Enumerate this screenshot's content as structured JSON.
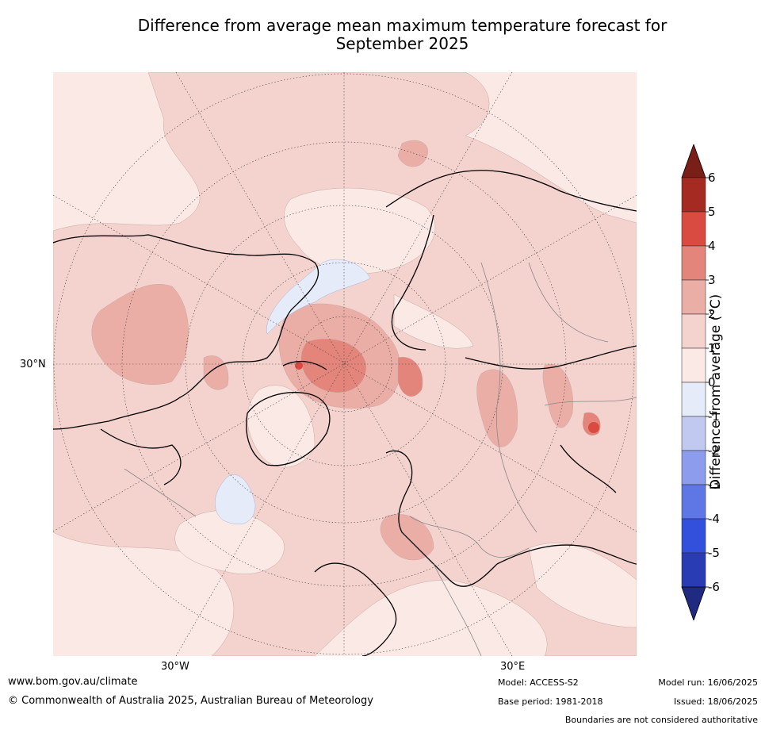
{
  "title_line1": "Difference from average mean maximum temperature forecast for",
  "title_line2": "September 2025",
  "map": {
    "projection": "north-polar-stereographic",
    "lat_label": "30°N",
    "lon_labels": [
      "30°W",
      "30°E"
    ],
    "region_fill_colors": {
      "near_average": "#fbe9e6",
      "plus_1_2": "#f4d2cd",
      "plus_2_3": "#ebaea7",
      "plus_3_4": "#e4857c",
      "plus_4_5": "#d94b41",
      "minus_0_1": "#e6ebfa"
    }
  },
  "colorbar": {
    "label": "Difference from average (°C)",
    "tick_labels": [
      "6",
      "5",
      "4",
      "3",
      "2",
      "1",
      "0",
      "-1",
      "-2",
      "-3",
      "-4",
      "-5",
      "-6"
    ],
    "colors": [
      "#a52a22",
      "#d94b41",
      "#e4857c",
      "#ebaea7",
      "#f4d2cd",
      "#fbe9e6",
      "#e6ebfa",
      "#c1c9f0",
      "#8d9cec",
      "#5f77e4",
      "#3350dc",
      "#2a3cb4"
    ],
    "extend_top_color": "#7a1f18",
    "extend_bottom_color": "#1f2a80"
  },
  "footer": {
    "website": "www.bom.gov.au/climate",
    "copyright": "© Commonwealth of Australia 2025, Australian Bureau of Meteorology",
    "model": "Model: ACCESS-S2",
    "base_period": "Base period: 1981-2018",
    "model_run": "Model run: 16/06/2025",
    "issued": "Issued: 18/06/2025",
    "disclaimer": "Boundaries are not considered authoritative"
  }
}
